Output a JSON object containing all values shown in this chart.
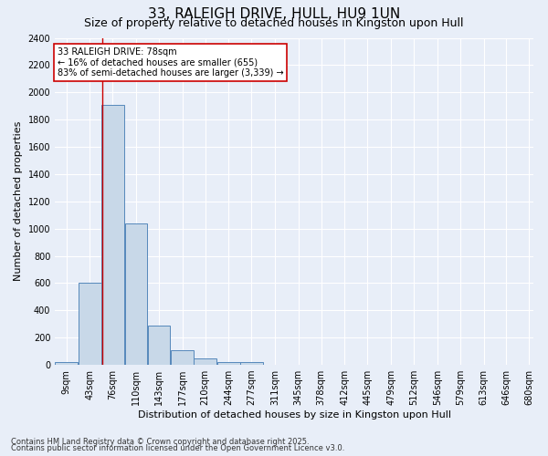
{
  "title": "33, RALEIGH DRIVE, HULL, HU9 1UN",
  "subtitle": "Size of property relative to detached houses in Kingston upon Hull",
  "xlabel": "Distribution of detached houses by size in Kingston upon Hull",
  "ylabel": "Number of detached properties",
  "footnote1": "Contains HM Land Registry data © Crown copyright and database right 2025.",
  "footnote2": "Contains public sector information licensed under the Open Government Licence v3.0.",
  "bin_labels": [
    "9sqm",
    "43sqm",
    "76sqm",
    "110sqm",
    "143sqm",
    "177sqm",
    "210sqm",
    "244sqm",
    "277sqm",
    "311sqm",
    "345sqm",
    "378sqm",
    "412sqm",
    "445sqm",
    "479sqm",
    "512sqm",
    "546sqm",
    "579sqm",
    "613sqm",
    "646sqm",
    "680sqm"
  ],
  "bar_values": [
    20,
    605,
    1910,
    1040,
    290,
    110,
    45,
    20,
    20,
    0,
    0,
    0,
    0,
    0,
    0,
    0,
    0,
    0,
    0,
    0
  ],
  "bar_color": "#c8d8e8",
  "bar_edge_color": "#5588bb",
  "vline_x": 78,
  "vline_color": "#cc0000",
  "annotation_line1": "33 RALEIGH DRIVE: 78sqm",
  "annotation_line2": "← 16% of detached houses are smaller (655)",
  "annotation_line3": "83% of semi-detached houses are larger (3,339) →",
  "annotation_box_color": "#ffffff",
  "annotation_box_edge": "#cc0000",
  "ylim": [
    0,
    2400
  ],
  "yticks": [
    0,
    200,
    400,
    600,
    800,
    1000,
    1200,
    1400,
    1600,
    1800,
    2000,
    2200,
    2400
  ],
  "bg_color": "#e8eef8",
  "plot_bg_color": "#e8eef8",
  "grid_color": "#ffffff",
  "title_fontsize": 11,
  "subtitle_fontsize": 9,
  "axis_fontsize": 8,
  "tick_fontsize": 7,
  "annot_fontsize": 7
}
